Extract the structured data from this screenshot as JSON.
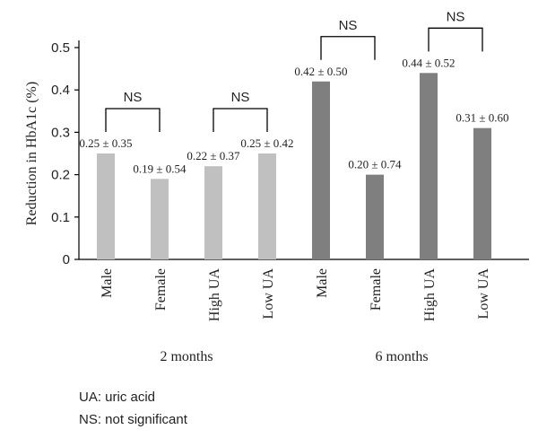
{
  "chart_data": {
    "type": "bar",
    "ylabel": "Reduction in HbA1c (%)",
    "ylim": [
      0,
      0.5
    ],
    "yticks": [
      "0",
      "0.1",
      "0.2",
      "0.3",
      "0.4",
      "0.5"
    ],
    "grid": false,
    "categories": [
      "Male",
      "Female",
      "High UA",
      "Low UA",
      "Male",
      "Female",
      "High UA",
      "Low UA"
    ],
    "groups": [
      {
        "label": "2 months",
        "color": "#c0c0c0"
      },
      {
        "label": "6 months",
        "color": "#7f7f7f"
      }
    ],
    "series": [
      {
        "values": [
          0.25,
          0.19,
          0.22,
          0.25,
          0.42,
          0.2,
          0.44,
          0.31
        ],
        "labels": [
          "0.25 ± 0.35",
          "0.19 ± 0.54",
          "0.22 ± 0.37",
          "0.25 ± 0.42",
          "0.42 ± 0.50",
          "0.20 ± 0.74",
          "0.44 ± 0.52",
          "0.31 ± 0.60"
        ]
      }
    ],
    "annotations": [
      {
        "text": "NS",
        "from": 0,
        "to": 1
      },
      {
        "text": "NS",
        "from": 2,
        "to": 3
      },
      {
        "text": "NS",
        "from": 4,
        "to": 5
      },
      {
        "text": "NS",
        "from": 6,
        "to": 7
      }
    ]
  },
  "notes": {
    "line1": "UA: uric acid",
    "line2": "NS: not significant"
  }
}
